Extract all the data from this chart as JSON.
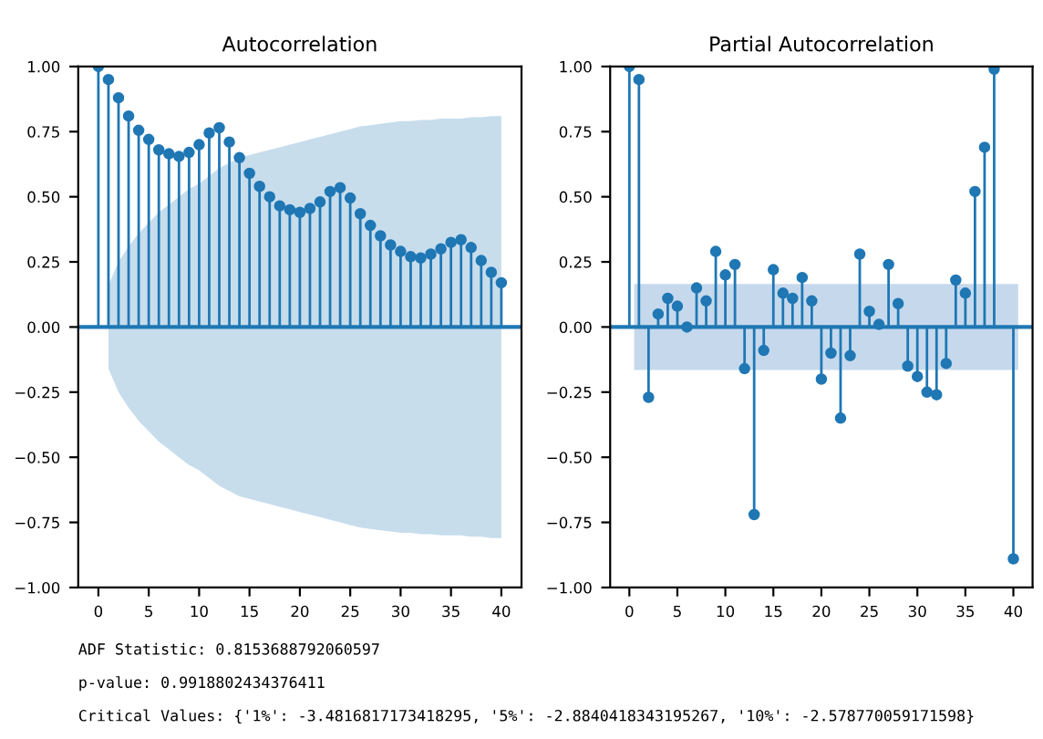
{
  "chart_data": [
    {
      "type": "lollipop",
      "title": "Autocorrelation",
      "x": [
        0,
        1,
        2,
        3,
        4,
        5,
        6,
        7,
        8,
        9,
        10,
        11,
        12,
        13,
        14,
        15,
        16,
        17,
        18,
        19,
        20,
        21,
        22,
        23,
        24,
        25,
        26,
        27,
        28,
        29,
        30,
        31,
        32,
        33,
        34,
        35,
        36,
        37,
        38,
        39,
        40
      ],
      "series": [
        {
          "color": "#1f77b4",
          "values": [
            1.0,
            0.95,
            0.88,
            0.81,
            0.755,
            0.72,
            0.68,
            0.665,
            0.655,
            0.67,
            0.7,
            0.745,
            0.765,
            0.71,
            0.65,
            0.59,
            0.54,
            0.5,
            0.465,
            0.45,
            0.44,
            0.455,
            0.48,
            0.52,
            0.535,
            0.495,
            0.435,
            0.39,
            0.35,
            0.315,
            0.29,
            0.27,
            0.265,
            0.28,
            0.3,
            0.325,
            0.335,
            0.305,
            0.255,
            0.21,
            0.17
          ],
          "upper": [
            null,
            0.16,
            0.25,
            0.31,
            0.36,
            0.4,
            0.44,
            0.47,
            0.5,
            0.53,
            0.55,
            0.58,
            0.61,
            0.63,
            0.65,
            0.66,
            0.67,
            0.68,
            0.69,
            0.7,
            0.71,
            0.72,
            0.73,
            0.74,
            0.75,
            0.76,
            0.77,
            0.775,
            0.78,
            0.785,
            0.79,
            0.79,
            0.795,
            0.795,
            0.8,
            0.8,
            0.8,
            0.805,
            0.805,
            0.81,
            0.81
          ],
          "lower": [
            null,
            -0.16,
            -0.25,
            -0.31,
            -0.36,
            -0.4,
            -0.44,
            -0.47,
            -0.5,
            -0.53,
            -0.55,
            -0.58,
            -0.61,
            -0.63,
            -0.65,
            -0.66,
            -0.67,
            -0.68,
            -0.69,
            -0.7,
            -0.71,
            -0.72,
            -0.73,
            -0.74,
            -0.75,
            -0.76,
            -0.77,
            -0.775,
            -0.78,
            -0.785,
            -0.79,
            -0.79,
            -0.795,
            -0.795,
            -0.8,
            -0.8,
            -0.8,
            -0.805,
            -0.805,
            -0.81,
            -0.81
          ]
        }
      ],
      "xlim": [
        -2,
        42
      ],
      "xticks": [
        0,
        5,
        10,
        15,
        20,
        25,
        30,
        35,
        40
      ],
      "ylim": [
        -1.0,
        1.0
      ],
      "yticks": [
        {
          "value": -1.0,
          "label": "−1.00"
        },
        {
          "value": -0.75,
          "label": "−0.75"
        },
        {
          "value": -0.5,
          "label": "−0.50"
        },
        {
          "value": -0.25,
          "label": "−0.25"
        },
        {
          "value": 0,
          "label": "0.00"
        },
        {
          "value": 0.25,
          "label": "0.25"
        },
        {
          "value": 0.5,
          "label": "0.50"
        },
        {
          "value": 0.75,
          "label": "0.75"
        },
        {
          "value": 1.0,
          "label": "1.00"
        }
      ],
      "marker": "circle",
      "grid": false,
      "ref_lines": [
        {
          "axis": "y",
          "value": 0,
          "color": "#1f77b4"
        }
      ],
      "annotations": [
        "ADF Statistic: 0.8153688792060597",
        "p-value: 0.9918802434376411",
        "Critical Values: {'1%': -3.4816817173418295, '5%': -2.8840418343195267, '10%': -2.578770059171598}"
      ]
    },
    {
      "type": "lollipop",
      "title": "Partial Autocorrelation",
      "x": [
        0,
        1,
        2,
        3,
        4,
        5,
        6,
        7,
        8,
        9,
        10,
        11,
        12,
        13,
        14,
        15,
        16,
        17,
        18,
        19,
        20,
        21,
        22,
        23,
        24,
        25,
        26,
        27,
        28,
        29,
        30,
        31,
        32,
        33,
        34,
        35,
        36,
        37,
        38,
        39,
        40
      ],
      "series": [
        {
          "color": "#1f77b4",
          "values": [
            1.0,
            0.95,
            -0.27,
            0.05,
            0.11,
            0.08,
            0.0,
            0.15,
            0.1,
            0.29,
            0.2,
            0.24,
            -0.16,
            -0.72,
            -0.09,
            0.22,
            0.13,
            0.11,
            0.19,
            0.1,
            -0.2,
            -0.1,
            -0.35,
            -0.11,
            0.28,
            0.06,
            0.01,
            0.24,
            0.09,
            -0.15,
            -0.19,
            -0.25,
            -0.26,
            -0.14,
            0.18,
            0.13,
            0.52,
            0.69,
            0.99,
            null,
            -0.89
          ]
        }
      ],
      "xlim": [
        -2,
        42
      ],
      "xticks": [
        0,
        5,
        10,
        15,
        20,
        25,
        30,
        35,
        40
      ],
      "ylim": [
        -1.0,
        1.0
      ],
      "yticks": [
        {
          "value": -1.0,
          "label": "−1.00"
        },
        {
          "value": -0.75,
          "label": "−0.75"
        },
        {
          "value": -0.5,
          "label": "−0.50"
        },
        {
          "value": -0.25,
          "label": "−0.25"
        },
        {
          "value": 0,
          "label": "0.00"
        },
        {
          "value": 0.25,
          "label": "0.25"
        },
        {
          "value": 0.5,
          "label": "0.50"
        },
        {
          "value": 0.75,
          "label": "0.75"
        },
        {
          "value": 1.0,
          "label": "1.00"
        }
      ],
      "marker": "circle",
      "grid": false,
      "ref_lines": [
        {
          "axis": "y",
          "value": 0,
          "color": "#1f77b4"
        }
      ],
      "bands": [
        {
          "axis": "y",
          "from": -0.165,
          "to": 0.165,
          "color": "#c6d9ec"
        }
      ]
    }
  ]
}
